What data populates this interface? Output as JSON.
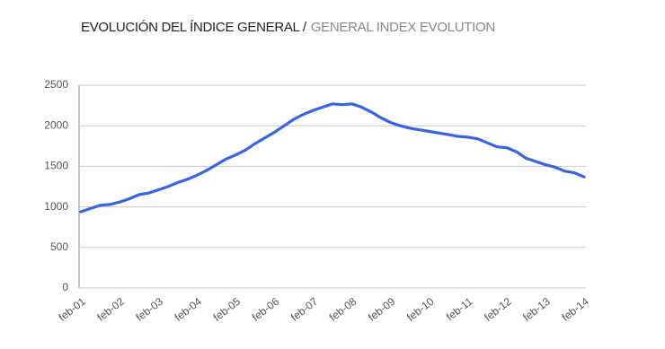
{
  "chart_data": {
    "type": "line",
    "title": "EVOLUCIÓN DEL ÍNDICE GENERAL /",
    "subtitle": "GENERAL INDEX EVOLUTION",
    "categories": [
      "feb-01",
      null,
      null,
      null,
      "feb-02",
      null,
      null,
      null,
      "feb-03",
      null,
      null,
      null,
      "feb-04",
      null,
      null,
      null,
      "feb-05",
      null,
      null,
      null,
      "feb-06",
      null,
      null,
      null,
      "feb-07",
      null,
      null,
      null,
      "feb-08",
      null,
      null,
      null,
      "feb-09",
      null,
      null,
      null,
      "feb-10",
      null,
      null,
      null,
      "feb-11",
      null,
      null,
      null,
      "feb-12",
      null,
      null,
      null,
      "feb-13",
      null,
      null,
      null,
      "feb-14"
    ],
    "series": [
      {
        "name": "Índice General",
        "color": "#3a63e0",
        "values": [
          940,
          980,
          1020,
          1030,
          1060,
          1100,
          1150,
          1170,
          1210,
          1250,
          1300,
          1340,
          1390,
          1450,
          1520,
          1590,
          1640,
          1700,
          1780,
          1850,
          1920,
          2000,
          2080,
          2140,
          2190,
          2230,
          2270,
          2260,
          2270,
          2230,
          2170,
          2100,
          2040,
          2000,
          1970,
          1950,
          1930,
          1910,
          1890,
          1870,
          1860,
          1840,
          1790,
          1740,
          1730,
          1680,
          1600,
          1560,
          1520,
          1490,
          1440,
          1420,
          1370
        ]
      }
    ],
    "ylim": [
      0,
      2500
    ],
    "yticks": [
      0,
      500,
      1000,
      1500,
      2000,
      2500
    ],
    "grid": true
  }
}
